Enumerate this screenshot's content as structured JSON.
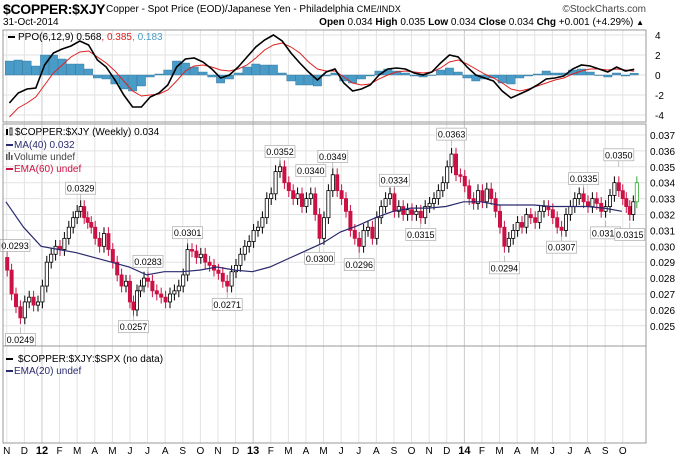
{
  "header": {
    "symbol": "$COPPER:$XJY",
    "description": "Copper - Spot Price (EOD)/Japanese Yen - Philadelphia",
    "exchange": "CME/INDX",
    "brand": "©StockCharts.com",
    "date": "31-Oct-2014",
    "open_label": "Open",
    "open": "0.034",
    "high_label": "High",
    "high": "0.035",
    "low_label": "Low",
    "low": "0.034",
    "close_label": "Close",
    "close": "0.034",
    "chg_label": "Chg",
    "chg": "+0.001 (+4.29%)",
    "chg_icon": "triangle-up-icon"
  },
  "colors": {
    "up_candle": "#000000",
    "down_candle": "#cc1144",
    "last_candle": "#33aa33",
    "ma40": "#2a2a6e",
    "ema60": "#cc1144",
    "ppo": "#000000",
    "ppo_signal": "#dd2222",
    "ppo_histogram": "#4a9cc8",
    "grid": "#e2e2e2"
  },
  "chart_data": [
    {
      "type": "line",
      "panel": "ppo",
      "legend": {
        "name": "PPO(6,12,9)",
        "ppo": "0.568",
        "signal": "0.385",
        "histogram": "0.183"
      },
      "yticks": [
        "4",
        "2",
        "0",
        "-2",
        "-4"
      ],
      "ylim": [
        -4.6,
        4.6
      ],
      "ppo": {
        "2011-11": [
          -2.8,
          -1.8
        ],
        "2011-12": [
          -1.4,
          -1.3
        ],
        "2012-01": [
          1.0,
          2.2
        ],
        "2012-02": [
          2.6,
          2.9
        ],
        "2012-03": [
          3.4,
          3.0
        ],
        "2012-04": [
          1.5,
          0.8
        ],
        "2012-05": [
          -0.5,
          -2.0
        ],
        "2012-06": [
          -3.2,
          -3.2
        ],
        "2012-07": [
          -2.2,
          -1.8
        ],
        "2012-08": [
          -1.0,
          0.8
        ],
        "2012-09": [
          1.6,
          1.7
        ],
        "2012-10": [
          1.3,
          0.6
        ],
        "2012-11": [
          -0.3,
          0.0
        ],
        "2012-12": [
          0.8,
          1.8
        ],
        "2013-01": [
          2.8,
          3.5
        ],
        "2013-02": [
          4.0,
          3.4
        ],
        "2013-03": [
          2.2,
          1.2
        ],
        "2013-04": [
          0.3,
          -0.5
        ],
        "2013-05": [
          0.3,
          0.6
        ],
        "2013-06": [
          -0.8,
          -1.6
        ],
        "2013-07": [
          -1.4,
          -1.0
        ],
        "2013-08": [
          0.0,
          0.6
        ],
        "2013-09": [
          0.7,
          0.6
        ],
        "2013-10": [
          0.2,
          0.0
        ],
        "2013-11": [
          0.3,
          1.2
        ],
        "2013-12": [
          2.0,
          1.8
        ],
        "2014-01": [
          0.8,
          0.0
        ],
        "2014-02": [
          -0.3,
          -0.6
        ],
        "2014-03": [
          -1.6,
          -2.3
        ],
        "2014-04": [
          -1.9,
          -1.5
        ],
        "2014-05": [
          -1.0,
          -0.4
        ],
        "2014-06": [
          -0.3,
          -0.1
        ],
        "2014-07": [
          0.6,
          1.0
        ],
        "2014-08": [
          0.9,
          0.6
        ],
        "2014-09": [
          0.3,
          0.8
        ],
        "2014-10": [
          0.4,
          0.568
        ]
      },
      "signal": {
        "2011-11": [
          -4.2,
          -3.3
        ],
        "2011-12": [
          -2.8,
          -2.2
        ],
        "2012-01": [
          -1.0,
          0.2
        ],
        "2012-02": [
          1.0,
          1.8
        ],
        "2012-03": [
          2.3,
          2.4
        ],
        "2012-04": [
          1.8,
          1.2
        ],
        "2012-05": [
          0.4,
          -0.6
        ],
        "2012-06": [
          -1.6,
          -2.1
        ],
        "2012-07": [
          -2.0,
          -1.9
        ],
        "2012-08": [
          -1.5,
          -0.6
        ],
        "2012-09": [
          0.4,
          0.9
        ],
        "2012-10": [
          1.0,
          0.8
        ],
        "2012-11": [
          0.5,
          0.4
        ],
        "2012-12": [
          0.6,
          1.0
        ],
        "2013-01": [
          1.7,
          2.5
        ],
        "2013-02": [
          3.0,
          3.2
        ],
        "2013-03": [
          2.8,
          2.2
        ],
        "2013-04": [
          1.3,
          0.6
        ],
        "2013-05": [
          0.4,
          0.4
        ],
        "2013-06": [
          -0.2,
          -0.8
        ],
        "2013-07": [
          -1.0,
          -0.9
        ],
        "2013-08": [
          -0.4,
          0.0
        ],
        "2013-09": [
          0.3,
          0.4
        ],
        "2013-10": [
          0.3,
          0.2
        ],
        "2013-11": [
          0.3,
          0.7
        ],
        "2013-12": [
          1.3,
          1.5
        ],
        "2014-01": [
          1.1,
          0.6
        ],
        "2014-02": [
          0.1,
          -0.3
        ],
        "2014-03": [
          -0.8,
          -1.4
        ],
        "2014-04": [
          -1.6,
          -1.4
        ],
        "2014-05": [
          -1.1,
          -0.8
        ],
        "2014-06": [
          -0.5,
          -0.3
        ],
        "2014-07": [
          0.1,
          0.4
        ],
        "2014-08": [
          0.6,
          0.6
        ],
        "2014-09": [
          0.5,
          0.6
        ],
        "2014-10": [
          0.5,
          0.385
        ]
      }
    },
    {
      "type": "candlestick",
      "panel": "price",
      "legend": [
        {
          "text": "$COPPER:$XJY (Weekly) 0.034",
          "icon": "candlestick-icon"
        },
        {
          "text": "MA(40) 0.032",
          "icon": "line-icon"
        },
        {
          "text": "Volume undef",
          "icon": "volume-bars-icon"
        },
        {
          "text": "EMA(60) undef",
          "icon": "line-icon"
        }
      ],
      "yticks": [
        "0.037",
        "0.036",
        "0.035",
        "0.034",
        "0.033",
        "0.032",
        "0.031",
        "0.030",
        "0.029",
        "0.028",
        "0.027",
        "0.026",
        "0.025"
      ],
      "ylim": [
        0.0243,
        0.0378
      ],
      "first_open": 0.0293,
      "weekly_close": {
        "2011-11": [
          0.0285,
          0.027,
          0.0262,
          0.0255
        ],
        "2011-12": [
          0.0265,
          0.0268,
          0.0263,
          0.0265
        ],
        "2012-01": [
          0.0275,
          0.029,
          0.0295,
          0.03
        ],
        "2012-02": [
          0.0298,
          0.0305,
          0.0312,
          0.0318
        ],
        "2012-03": [
          0.0322,
          0.0325,
          0.0318,
          0.0315,
          0.0312
        ],
        "2012-04": [
          0.0305,
          0.03,
          0.0308,
          0.0298
        ],
        "2012-05": [
          0.029,
          0.0282,
          0.0275,
          0.0278
        ],
        "2012-06": [
          0.0265,
          0.026,
          0.0272,
          0.0275,
          0.028
        ],
        "2012-07": [
          0.0278,
          0.0272,
          0.027,
          0.0268
        ],
        "2012-08": [
          0.0265,
          0.027,
          0.0272,
          0.0275
        ],
        "2012-09": [
          0.0282,
          0.0298,
          0.0297,
          0.0293
        ],
        "2012-10": [
          0.0295,
          0.029,
          0.0288,
          0.0285
        ],
        "2012-11": [
          0.0283,
          0.0278,
          0.0275,
          0.0284
        ],
        "2012-12": [
          0.0288,
          0.0295,
          0.03,
          0.0303
        ],
        "2013-01": [
          0.031,
          0.0312,
          0.0318,
          0.033
        ],
        "2013-02": [
          0.0333,
          0.0347,
          0.035,
          0.034
        ],
        "2013-03": [
          0.0335,
          0.033,
          0.0333,
          0.0325
        ],
        "2013-04": [
          0.033,
          0.0333,
          0.032,
          0.0305
        ],
        "2013-05": [
          0.0318,
          0.0335,
          0.0345,
          0.0335
        ],
        "2013-06": [
          0.033,
          0.0322,
          0.031,
          0.0305
        ],
        "2013-07": [
          0.03,
          0.031,
          0.0312,
          0.0305
        ],
        "2013-08": [
          0.0318,
          0.0325,
          0.033,
          0.0333
        ],
        "2013-09": [
          0.0322,
          0.0325,
          0.032,
          0.0323
        ],
        "2013-10": [
          0.032,
          0.0322,
          0.0318,
          0.0325
        ],
        "2013-11": [
          0.0327,
          0.033,
          0.0335,
          0.034
        ],
        "2013-12": [
          0.035,
          0.0358,
          0.0345,
          0.0344
        ],
        "2014-01": [
          0.0338,
          0.033,
          0.0327,
          0.0335
        ],
        "2014-02": [
          0.0328,
          0.0336,
          0.033,
          0.0322
        ],
        "2014-03": [
          0.0312,
          0.03,
          0.0305,
          0.031
        ],
        "2014-04": [
          0.0315,
          0.0312,
          0.032,
          0.0318
        ],
        "2014-05": [
          0.0315,
          0.0322,
          0.0325,
          0.0323
        ],
        "2014-06": [
          0.0318,
          0.0312,
          0.031,
          0.032
        ],
        "2014-07": [
          0.0325,
          0.033,
          0.0333,
          0.0328
        ],
        "2014-08": [
          0.0325,
          0.033,
          0.0327,
          0.0322
        ],
        "2014-09": [
          0.0325,
          0.0332,
          0.034,
          0.0335
        ],
        "2014-10": [
          0.033,
          0.0325,
          0.032,
          0.0328,
          0.034
        ]
      },
      "ma40": {
        "2011-11": 0.0328,
        "2011-12": 0.0312,
        "2012-01": 0.03,
        "2012-02": 0.0298,
        "2012-03": 0.0296,
        "2012-04": 0.0293,
        "2012-05": 0.029,
        "2012-06": 0.0287,
        "2012-07": 0.0282,
        "2012-08": 0.0284,
        "2012-09": 0.0284,
        "2012-10": 0.0285,
        "2012-11": 0.0287,
        "2012-12": 0.0285,
        "2013-01": 0.0284,
        "2013-02": 0.0287,
        "2013-03": 0.0292,
        "2013-04": 0.0297,
        "2013-05": 0.0302,
        "2013-06": 0.0309,
        "2013-07": 0.0313,
        "2013-08": 0.0318,
        "2013-09": 0.0322,
        "2013-10": 0.0324,
        "2013-11": 0.0324,
        "2013-12": 0.0325,
        "2014-01": 0.0328,
        "2014-02": 0.0328,
        "2014-03": 0.0326,
        "2014-04": 0.0326,
        "2014-05": 0.0326,
        "2014-06": 0.0325,
        "2014-07": 0.0325,
        "2014-08": 0.0325,
        "2014-09": 0.0324,
        "2014-10": 0.0322
      },
      "annotations": [
        {
          "text": "0.0293",
          "value": 0.0293,
          "month": "2011-11",
          "week": 0,
          "pos": "above"
        },
        {
          "text": "0.0249",
          "value": 0.0249,
          "month": "2011-11",
          "week": 3,
          "pos": "below"
        },
        {
          "text": "0.0329",
          "value": 0.0329,
          "month": "2012-03",
          "week": 1,
          "pos": "above"
        },
        {
          "text": "0.0283",
          "value": 0.0283,
          "month": "2012-07",
          "week": 0,
          "pos": "above"
        },
        {
          "text": "0.0257",
          "value": 0.0257,
          "month": "2012-06",
          "week": 1,
          "pos": "below"
        },
        {
          "text": "0.0301",
          "value": 0.0301,
          "month": "2012-09",
          "week": 1,
          "pos": "above"
        },
        {
          "text": "0.0271",
          "value": 0.0271,
          "month": "2012-11",
          "week": 2,
          "pos": "below"
        },
        {
          "text": "0.0352",
          "value": 0.0352,
          "month": "2013-02",
          "week": 2,
          "pos": "above"
        },
        {
          "text": "0.0340",
          "value": 0.034,
          "month": "2013-04",
          "week": 1,
          "pos": "above"
        },
        {
          "text": "0.0300",
          "value": 0.03,
          "month": "2013-04",
          "week": 3,
          "pos": "below"
        },
        {
          "text": "0.0349",
          "value": 0.0349,
          "month": "2013-05",
          "week": 2,
          "pos": "above"
        },
        {
          "text": "0.0296",
          "value": 0.0296,
          "month": "2013-07",
          "week": 0,
          "pos": "below"
        },
        {
          "text": "0.0334",
          "value": 0.0334,
          "month": "2013-09",
          "week": 0,
          "pos": "above"
        },
        {
          "text": "0.0315",
          "value": 0.0315,
          "month": "2013-10",
          "week": 2,
          "pos": "below"
        },
        {
          "text": "0.0363",
          "value": 0.0363,
          "month": "2013-12",
          "week": 1,
          "pos": "above"
        },
        {
          "text": "0.0294",
          "value": 0.0294,
          "month": "2014-03",
          "week": 1,
          "pos": "below"
        },
        {
          "text": "0.0307",
          "value": 0.0307,
          "month": "2014-06",
          "week": 2,
          "pos": "below"
        },
        {
          "text": "0.0335",
          "value": 0.0335,
          "month": "2014-07",
          "week": 3,
          "pos": "above"
        },
        {
          "text": "0.0316",
          "value": 0.0316,
          "month": "2014-09",
          "week": 0,
          "pos": "below"
        },
        {
          "text": "0.0350",
          "value": 0.035,
          "month": "2014-09",
          "week": 3,
          "pos": "above"
        },
        {
          "text": "0.0315",
          "value": 0.0315,
          "month": "2014-10",
          "week": 2,
          "pos": "below"
        }
      ]
    },
    {
      "type": "line",
      "panel": "relative",
      "legend": [
        {
          "text": "$COPPER:$XJY:$SPX (no data)",
          "icon": "line-icon"
        },
        {
          "text": "EMA(20) undef",
          "icon": "line-icon"
        }
      ]
    }
  ],
  "x_axis": {
    "months": [
      "N",
      "D",
      "12",
      "F",
      "M",
      "A",
      "M",
      "J",
      "J",
      "A",
      "S",
      "O",
      "N",
      "D",
      "13",
      "F",
      "M",
      "A",
      "M",
      "J",
      "J",
      "A",
      "S",
      "O",
      "N",
      "D",
      "14",
      "F",
      "M",
      "A",
      "M",
      "J",
      "J",
      "A",
      "S",
      "O"
    ]
  }
}
